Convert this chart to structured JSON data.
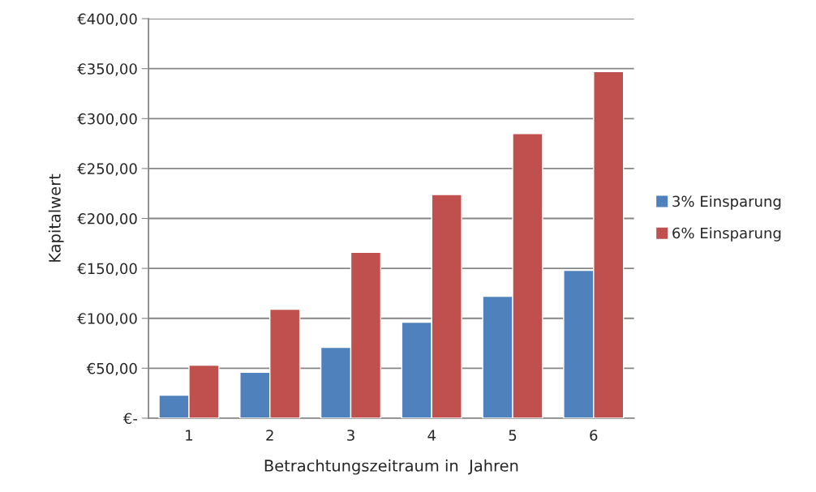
{
  "chart_data": {
    "type": "bar",
    "xlabel": "Betrachtungszeitraum in  Jahren",
    "ylabel": "Kapitalwert",
    "categories": [
      "1",
      "2",
      "3",
      "4",
      "5",
      "6"
    ],
    "series": [
      {
        "name": "3% Einsparung",
        "color": "#4f81bd",
        "values": [
          23,
          46,
          71,
          96,
          122,
          148
        ]
      },
      {
        "name": "6% Einsparung",
        "color": "#c0504d",
        "values": [
          53,
          109,
          166,
          224,
          285,
          347
        ]
      }
    ],
    "ylim": [
      0,
      400
    ],
    "yticks": [
      {
        "value": 0,
        "label": "€-"
      },
      {
        "value": 50,
        "label": "€50,00"
      },
      {
        "value": 100,
        "label": "€100,00"
      },
      {
        "value": 150,
        "label": "€150,00"
      },
      {
        "value": 200,
        "label": "€200,00"
      },
      {
        "value": 250,
        "label": "€250,00"
      },
      {
        "value": 300,
        "label": "€300,00"
      },
      {
        "value": 350,
        "label": "€350,00"
      },
      {
        "value": 400,
        "label": "€400,00"
      }
    ],
    "grid": "y",
    "legend": "right"
  }
}
